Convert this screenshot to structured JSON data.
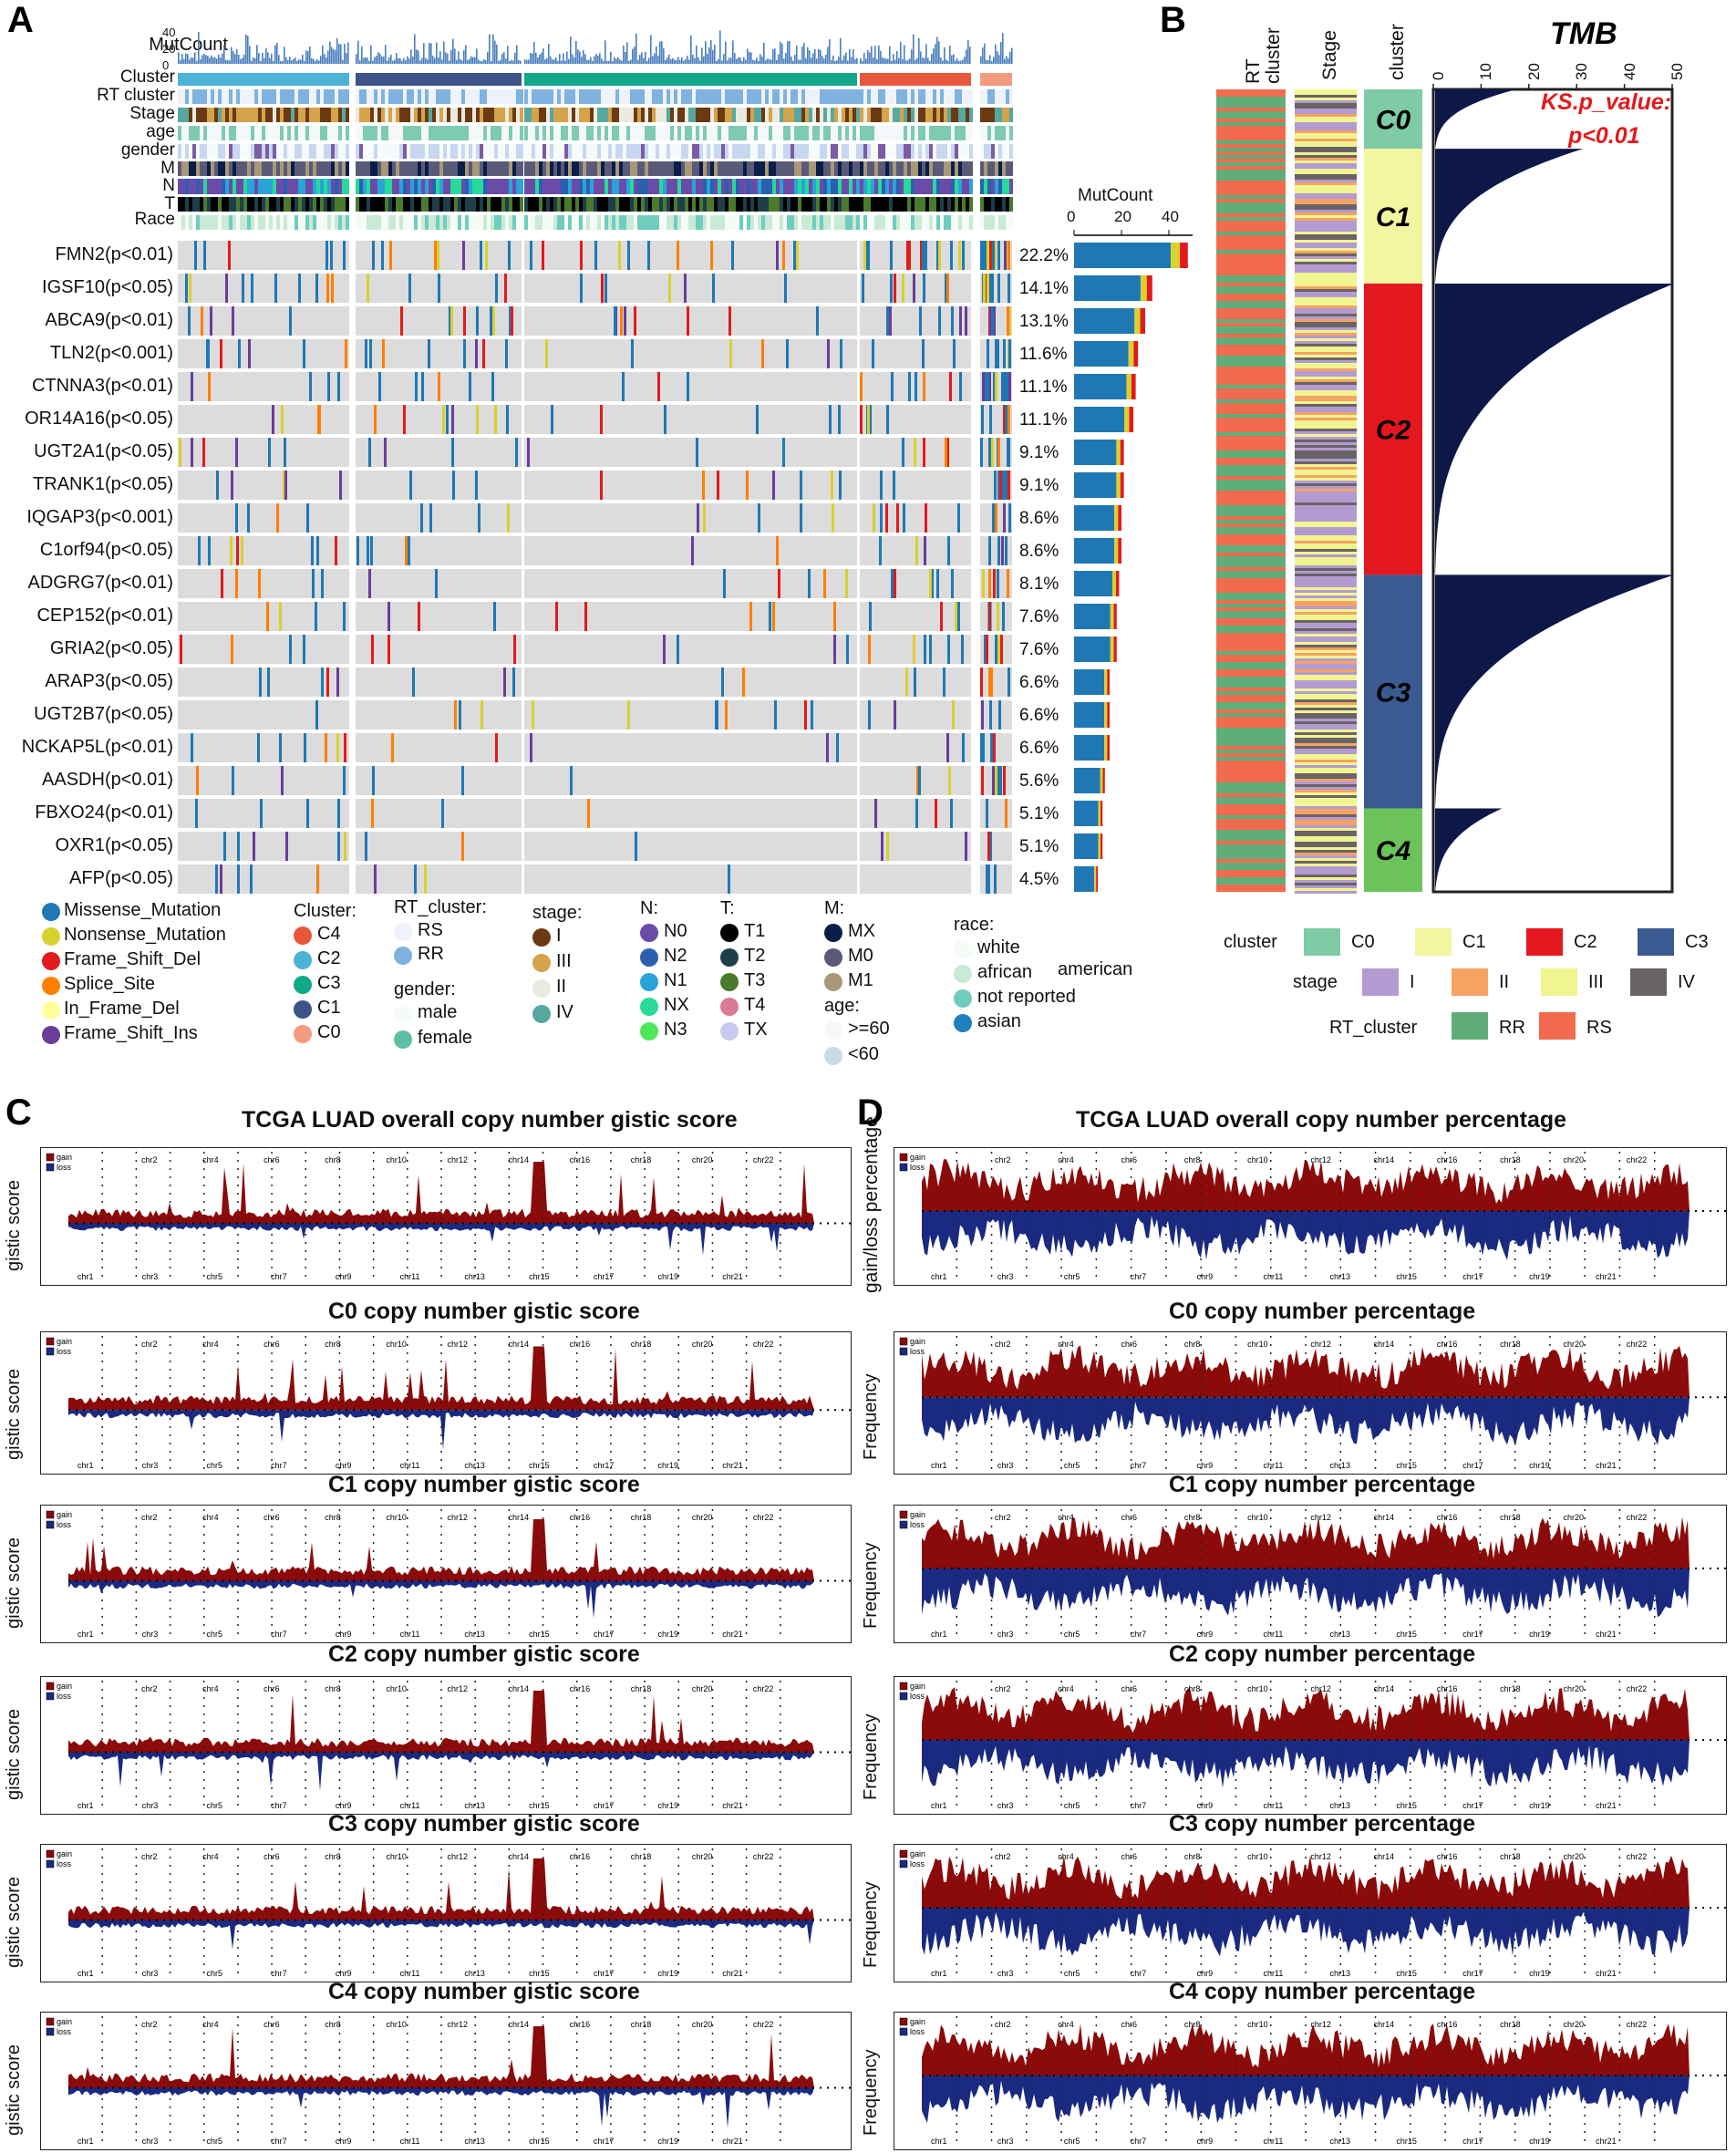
{
  "panels": {
    "a": "A",
    "b": "B",
    "c": "C",
    "d": "D"
  },
  "oncoplot": {
    "track_labels": [
      "MutCount",
      "Cluster",
      "RT cluster",
      "Stage",
      "age",
      "gender",
      "M",
      "N",
      "T",
      "Race"
    ],
    "mutcount_ticks": [
      "40",
      "20",
      "0"
    ],
    "genes": [
      {
        "label": "FMN2(p<0.01)",
        "pct": "22.2%",
        "count": 48
      },
      {
        "label": "IGSF10(p<0.05)",
        "pct": "14.1%",
        "count": 33
      },
      {
        "label": "ABCA9(p<0.01)",
        "pct": "13.1%",
        "count": 30
      },
      {
        "label": "TLN2(p<0.001)",
        "pct": "11.6%",
        "count": 27
      },
      {
        "label": "CTNNA3(p<0.01)",
        "pct": "11.1%",
        "count": 26
      },
      {
        "label": "OR14A16(p<0.05)",
        "pct": "11.1%",
        "count": 25
      },
      {
        "label": "UGT2A1(p<0.05)",
        "pct": "9.1%",
        "count": 21
      },
      {
        "label": "TRANK1(p<0.05)",
        "pct": "9.1%",
        "count": 21
      },
      {
        "label": "IQGAP3(p<0.001)",
        "pct": "8.6%",
        "count": 20
      },
      {
        "label": "C1orf94(p<0.05)",
        "pct": "8.6%",
        "count": 20
      },
      {
        "label": "ADGRG7(p<0.01)",
        "pct": "8.1%",
        "count": 19
      },
      {
        "label": "CEP152(p<0.01)",
        "pct": "7.6%",
        "count": 18
      },
      {
        "label": "GRIA2(p<0.05)",
        "pct": "7.6%",
        "count": 18
      },
      {
        "label": "ARAP3(p<0.05)",
        "pct": "6.6%",
        "count": 15
      },
      {
        "label": "UGT2B7(p<0.05)",
        "pct": "6.6%",
        "count": 15
      },
      {
        "label": "NCKAP5L(p<0.01)",
        "pct": "6.6%",
        "count": 15
      },
      {
        "label": "AASDH(p<0.01)",
        "pct": "5.6%",
        "count": 13
      },
      {
        "label": "FBXO24(p<0.01)",
        "pct": "5.1%",
        "count": 12
      },
      {
        "label": "OXR1(p<0.05)",
        "pct": "5.1%",
        "count": 12
      },
      {
        "label": "AFP(p<0.05)",
        "pct": "4.5%",
        "count": 10
      }
    ],
    "bar_title": "MutCount",
    "bar_ticks": [
      "0",
      "20",
      "40"
    ],
    "legend": {
      "mutation_types": [
        {
          "label": "Missense_Mutation",
          "color": "#1f78b4"
        },
        {
          "label": "Nonsense_Mutation",
          "color": "#d8d12e"
        },
        {
          "label": "Frame_Shift_Del",
          "color": "#e31a1c"
        },
        {
          "label": "Splice_Site",
          "color": "#ff7f00"
        },
        {
          "label": "In_Frame_Del",
          "color": "#ffff99"
        },
        {
          "label": "Frame_Shift_Ins",
          "color": "#6a3d9a"
        }
      ],
      "cluster_title": "Cluster:",
      "cluster_items": [
        {
          "label": "C4",
          "color": "#e8573c"
        },
        {
          "label": "C2",
          "color": "#4db3d6"
        },
        {
          "label": "C3",
          "color": "#12a88a"
        },
        {
          "label": "C1",
          "color": "#3c5488"
        },
        {
          "label": "C0",
          "color": "#f39b7f"
        }
      ],
      "rt_title": "RT_cluster:",
      "rt_items": [
        {
          "label": "RS",
          "color": "#eef2fa"
        },
        {
          "label": "RR",
          "color": "#7fb2de"
        }
      ],
      "gender_title": "gender:",
      "gender_items": [
        {
          "label": "male",
          "color": "#f5fafa"
        },
        {
          "label": "female",
          "color": "#5dbfa5"
        }
      ],
      "stage_title": "stage:",
      "stage_items": [
        {
          "label": "I",
          "color": "#6b3a12"
        },
        {
          "label": "III",
          "color": "#d4a34a"
        },
        {
          "label": "II",
          "color": "#eaeae0"
        },
        {
          "label": "IV",
          "color": "#56a8a0"
        }
      ],
      "n_title": "N:",
      "n_items": [
        {
          "label": "N0",
          "color": "#6a4ca8"
        },
        {
          "label": "N2",
          "color": "#2b5fb0"
        },
        {
          "label": "N1",
          "color": "#2aa3d8"
        },
        {
          "label": "NX",
          "color": "#28d99a"
        },
        {
          "label": "N3",
          "color": "#4de85a"
        }
      ],
      "t_title": "T:",
      "t_items": [
        {
          "label": "T1",
          "color": "#000000"
        },
        {
          "label": "T2",
          "color": "#1e3e4a"
        },
        {
          "label": "T3",
          "color": "#4a7a2c"
        },
        {
          "label": "T4",
          "color": "#d97a96"
        },
        {
          "label": "TX",
          "color": "#c8c9f0"
        }
      ],
      "m_title": "M:",
      "m_items": [
        {
          "label": "MX",
          "color": "#0a1e4a"
        },
        {
          "label": "M0",
          "color": "#5a5a78"
        },
        {
          "label": "M1",
          "color": "#a89878"
        }
      ],
      "age_title": "age:",
      "age_items": [
        {
          "label": ">=60",
          "color": "#f4f8fb"
        },
        {
          "label": "<60",
          "color": "#c8dbe8"
        }
      ],
      "race_title": "race:",
      "race_items": [
        {
          "label": "white",
          "color": "#f5fbf5"
        },
        {
          "label": "african",
          "color": "#c9ead5"
        },
        {
          "label": "not reported",
          "color": "#6fccbf"
        },
        {
          "label": "asian",
          "color": "#1f7fbf"
        }
      ],
      "race_extra": "american"
    }
  },
  "tmb": {
    "title": "TMB",
    "ks_line1": "KS.p_value:",
    "ks_line2": "p<0.01",
    "col_labels": [
      "RT cluster",
      "Stage",
      "cluster"
    ],
    "axis_ticks": [
      "0",
      "10",
      "20",
      "30",
      "40",
      "50"
    ],
    "clusters": [
      {
        "label": "C0",
        "color": "#7ecba5",
        "frac": 0.074,
        "max": 15
      },
      {
        "label": "C1",
        "color": "#f2f6a0",
        "frac": 0.168,
        "max": 29
      },
      {
        "label": "C2",
        "color": "#e5171e",
        "frac": 0.363,
        "max": 48
      },
      {
        "label": "C3",
        "color": "#3c5a92",
        "frac": 0.291,
        "max": 48
      },
      {
        "label": "C4",
        "color": "#6cc35b",
        "frac": 0.104,
        "max": 12
      }
    ],
    "legend": {
      "cluster_title": "cluster",
      "cluster_items": [
        {
          "label": "C0",
          "color": "#7ecba5"
        },
        {
          "label": "C1",
          "color": "#f2f6a0"
        },
        {
          "label": "C2",
          "color": "#e5171e"
        },
        {
          "label": "C3",
          "color": "#3c5a92"
        },
        {
          "label": "C4",
          "color": "#6cc35b"
        }
      ],
      "stage_title": "stage",
      "stage_items": [
        {
          "label": "I",
          "color": "#b39bd1"
        },
        {
          "label": "II",
          "color": "#f5a263"
        },
        {
          "label": "III",
          "color": "#f0f58f"
        },
        {
          "label": "IV",
          "color": "#6a6366"
        }
      ],
      "rt_title": "RT_cluster",
      "rt_items": [
        {
          "label": "RR",
          "color": "#5fae7a"
        },
        {
          "label": "RS",
          "color": "#f26b4e"
        }
      ]
    }
  },
  "cnv": {
    "left_titles": [
      "TCGA LUAD overall copy number gistic score",
      "C0 copy number gistic score",
      "C1 copy number gistic score",
      "C2 copy number gistic score",
      "C3 copy number gistic score",
      "C4 copy number gistic score"
    ],
    "right_titles": [
      "TCGA LUAD overall copy number percentage",
      "C0 copy number percentage",
      "C1 copy number percentage",
      "C2 copy number percentage",
      "C3 copy number percentage",
      "C4 copy number percentage"
    ],
    "left_ylabel": "gistic score",
    "right_ylabel_first": "gain/loss percentage",
    "right_ylabel": "Frequency",
    "gain_label": "gain",
    "loss_label": "loss",
    "gain_color": "#8b0a0a",
    "loss_color": "#1a2a80",
    "chr_top": [
      "chr2",
      "chr4",
      "chr6",
      "chr8",
      "chr10",
      "chr12",
      "chr14",
      "chr16",
      "chr18",
      "chr20",
      "chr22"
    ],
    "chr_bottom": [
      "chr1",
      "chr3",
      "chr5",
      "chr7",
      "chr9",
      "chr11",
      "chr13",
      "chr15",
      "chr17",
      "chr19",
      "chr21"
    ]
  }
}
